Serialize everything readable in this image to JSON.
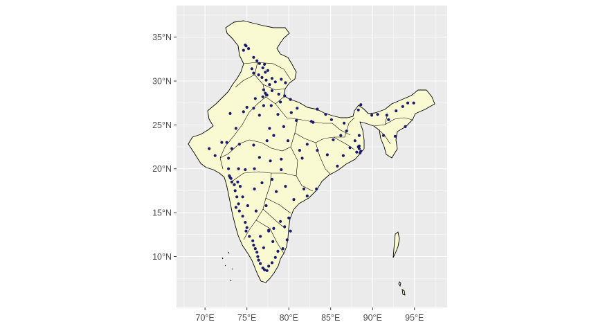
{
  "chart_data": {
    "type": "scatter",
    "title": "",
    "xlabel": "",
    "ylabel": "",
    "xlim": [
      66.6,
      98.9
    ],
    "ylim": [
      4.2,
      38.6
    ],
    "grid": true,
    "legend": "none",
    "x_ticks": [
      {
        "value": 70,
        "label": "70°E"
      },
      {
        "value": 75,
        "label": "75°E"
      },
      {
        "value": 80,
        "label": "80°E"
      },
      {
        "value": 85,
        "label": "85°E"
      },
      {
        "value": 90,
        "label": "90°E"
      },
      {
        "value": 95,
        "label": "95°E"
      }
    ],
    "y_ticks": [
      {
        "value": 10,
        "label": "10°N"
      },
      {
        "value": 15,
        "label": "15°N"
      },
      {
        "value": 20,
        "label": "20°N"
      },
      {
        "value": 25,
        "label": "25°N"
      },
      {
        "value": 30,
        "label": "30°N"
      },
      {
        "value": 35,
        "label": "35°N"
      }
    ],
    "colors": {
      "panel_background": "#ebebeb",
      "grid": "#ffffff",
      "land_fill": "#fafad2",
      "border": "#000000",
      "points": "#1a1a6e"
    },
    "series": [
      {
        "points": [
          [
            74.8,
            34.1
          ],
          [
            74.9,
            34.0
          ],
          [
            75.2,
            33.7
          ],
          [
            74.6,
            33.5
          ],
          [
            75.8,
            32.7
          ],
          [
            76.2,
            32.3
          ],
          [
            76.5,
            32.0
          ],
          [
            77.1,
            31.9
          ],
          [
            76.9,
            31.5
          ],
          [
            77.5,
            31.2
          ],
          [
            77.2,
            31.0
          ],
          [
            75.6,
            31.4
          ],
          [
            75.8,
            30.9
          ],
          [
            76.4,
            30.7
          ],
          [
            76.8,
            30.4
          ],
          [
            77.3,
            30.1
          ],
          [
            78.0,
            30.3
          ],
          [
            78.4,
            29.9
          ],
          [
            79.1,
            30.2
          ],
          [
            79.6,
            29.8
          ],
          [
            77.7,
            29.6
          ],
          [
            77.0,
            29.0
          ],
          [
            77.2,
            28.6
          ],
          [
            77.4,
            28.4
          ],
          [
            76.9,
            28.2
          ],
          [
            78.0,
            28.9
          ],
          [
            78.8,
            28.5
          ],
          [
            79.5,
            28.3
          ],
          [
            80.2,
            27.9
          ],
          [
            79.0,
            27.6
          ],
          [
            77.9,
            27.2
          ],
          [
            76.0,
            28.0
          ],
          [
            75.0,
            27.0
          ],
          [
            73.0,
            26.3
          ],
          [
            74.6,
            26.5
          ],
          [
            75.8,
            26.9
          ],
          [
            76.5,
            26.1
          ],
          [
            73.7,
            24.6
          ],
          [
            72.0,
            23.0
          ],
          [
            72.6,
            23.0
          ],
          [
            70.5,
            22.3
          ],
          [
            71.2,
            21.5
          ],
          [
            72.8,
            21.2
          ],
          [
            73.2,
            22.3
          ],
          [
            74.1,
            22.8
          ],
          [
            72.8,
            20.0
          ],
          [
            72.9,
            19.2
          ],
          [
            73.0,
            19.0
          ],
          [
            73.1,
            18.9
          ],
          [
            73.2,
            18.5
          ],
          [
            73.5,
            18.2
          ],
          [
            73.9,
            18.5
          ],
          [
            74.2,
            18.0
          ],
          [
            73.6,
            17.5
          ],
          [
            73.8,
            16.8
          ],
          [
            74.0,
            16.0
          ],
          [
            73.7,
            15.6
          ],
          [
            74.1,
            15.2
          ],
          [
            74.5,
            14.6
          ],
          [
            74.8,
            13.9
          ],
          [
            75.0,
            13.3
          ],
          [
            74.9,
            12.9
          ],
          [
            75.3,
            12.3
          ],
          [
            75.7,
            11.8
          ],
          [
            75.8,
            11.3
          ],
          [
            76.0,
            10.9
          ],
          [
            76.2,
            10.5
          ],
          [
            76.3,
            10.0
          ],
          [
            76.4,
            9.6
          ],
          [
            76.6,
            9.2
          ],
          [
            76.9,
            8.7
          ],
          [
            77.1,
            8.5
          ],
          [
            77.4,
            8.4
          ],
          [
            77.6,
            8.9
          ],
          [
            78.0,
            9.3
          ],
          [
            78.4,
            9.9
          ],
          [
            78.7,
            10.6
          ],
          [
            79.3,
            10.9
          ],
          [
            79.8,
            11.9
          ],
          [
            80.2,
            12.9
          ],
          [
            79.5,
            13.4
          ],
          [
            80.0,
            14.4
          ],
          [
            79.0,
            14.0
          ],
          [
            78.2,
            13.2
          ],
          [
            77.6,
            13.0
          ],
          [
            77.6,
            12.9
          ],
          [
            76.6,
            12.3
          ],
          [
            77.0,
            11.0
          ],
          [
            78.1,
            11.7
          ],
          [
            80.6,
            16.5
          ],
          [
            81.8,
            17.7
          ],
          [
            83.3,
            17.7
          ],
          [
            82.2,
            16.9
          ],
          [
            78.5,
            17.4
          ],
          [
            79.6,
            18.0
          ],
          [
            77.3,
            15.8
          ],
          [
            76.1,
            15.2
          ],
          [
            75.1,
            15.8
          ],
          [
            74.5,
            16.8
          ],
          [
            75.9,
            17.7
          ],
          [
            76.8,
            18.4
          ],
          [
            78.0,
            18.8
          ],
          [
            79.1,
            19.9
          ],
          [
            79.1,
            21.1
          ],
          [
            77.8,
            20.9
          ],
          [
            75.9,
            20.0
          ],
          [
            74.8,
            19.9
          ],
          [
            74.0,
            20.0
          ],
          [
            76.5,
            21.3
          ],
          [
            75.8,
            22.7
          ],
          [
            77.4,
            23.2
          ],
          [
            78.2,
            23.8
          ],
          [
            79.9,
            23.2
          ],
          [
            81.6,
            21.2
          ],
          [
            81.3,
            22.1
          ],
          [
            82.2,
            22.8
          ],
          [
            83.4,
            22.1
          ],
          [
            84.6,
            21.6
          ],
          [
            85.8,
            20.3
          ],
          [
            86.5,
            21.5
          ],
          [
            87.3,
            22.4
          ],
          [
            88.4,
            22.6
          ],
          [
            88.3,
            22.5
          ],
          [
            88.4,
            22.3
          ],
          [
            88.6,
            22.0
          ],
          [
            88.1,
            21.9
          ],
          [
            88.5,
            21.8
          ],
          [
            87.9,
            23.2
          ],
          [
            88.4,
            23.8
          ],
          [
            86.9,
            24.3
          ],
          [
            85.3,
            23.3
          ],
          [
            86.2,
            23.8
          ],
          [
            85.1,
            25.6
          ],
          [
            86.6,
            25.2
          ],
          [
            84.4,
            26.2
          ],
          [
            83.4,
            26.8
          ],
          [
            82.7,
            25.4
          ],
          [
            81.0,
            26.9
          ],
          [
            80.3,
            26.4
          ],
          [
            82.9,
            25.3
          ],
          [
            80.9,
            25.5
          ],
          [
            79.4,
            24.8
          ],
          [
            78.7,
            26.2
          ],
          [
            77.7,
            24.6
          ],
          [
            77.0,
            27.2
          ],
          [
            88.3,
            26.7
          ],
          [
            88.6,
            27.3
          ],
          [
            91.7,
            26.1
          ],
          [
            92.8,
            26.6
          ],
          [
            94.2,
            27.5
          ],
          [
            93.6,
            27.1
          ],
          [
            94.9,
            27.5
          ],
          [
            93.9,
            24.8
          ],
          [
            92.7,
            23.7
          ],
          [
            91.3,
            23.8
          ],
          [
            91.9,
            25.6
          ],
          [
            90.6,
            26.2
          ],
          [
            89.9,
            26.1
          ]
        ]
      }
    ]
  }
}
